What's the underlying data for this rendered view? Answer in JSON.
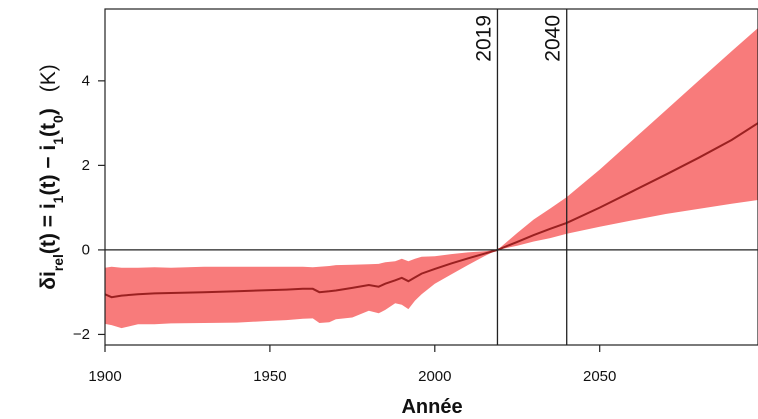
{
  "chart_data": {
    "type": "line",
    "xlabel": "Année",
    "ylabel": {
      "parts": [
        {
          "t": "δi",
          "sub": false
        },
        {
          "t": "rel",
          "sub": true
        },
        {
          "t": "(t) = i",
          "sub": false
        },
        {
          "t": "1",
          "sub": true
        },
        {
          "t": "(t) − i",
          "sub": false
        },
        {
          "t": "1",
          "sub": true
        },
        {
          "t": "(t",
          "sub": false
        },
        {
          "t": "0",
          "sub": true
        },
        {
          "t": ")",
          "sub": false
        }
      ],
      "unit": "(K)"
    },
    "xlim": [
      1900,
      2098
    ],
    "ylim": [
      -2.25,
      5.7
    ],
    "x_ticks": [
      1900,
      1950,
      2000,
      2050
    ],
    "y_ticks": [
      -2,
      0,
      2,
      4
    ],
    "hline": 0,
    "vlines": [
      {
        "x": 2019,
        "label": "2019"
      },
      {
        "x": 2040,
        "label": "2040"
      }
    ],
    "colors": {
      "band": "#f87b7b",
      "line": "#9b2121",
      "axis": "#222222"
    },
    "series": [
      {
        "x": [
          1900,
          1902,
          1905,
          1910,
          1915,
          1920,
          1930,
          1940,
          1950,
          1955,
          1960,
          1963,
          1965,
          1968,
          1970,
          1975,
          1980,
          1983,
          1985,
          1988,
          1990,
          1992,
          1994,
          1996,
          2000,
          2005,
          2010,
          2015,
          2019,
          2025,
          2030,
          2035,
          2040,
          2050,
          2060,
          2070,
          2080,
          2090,
          2098
        ],
        "mean": [
          -1.05,
          -1.12,
          -1.08,
          -1.05,
          -1.03,
          -1.02,
          -1.0,
          -0.98,
          -0.95,
          -0.94,
          -0.92,
          -0.92,
          -1.0,
          -0.98,
          -0.96,
          -0.9,
          -0.83,
          -0.87,
          -0.8,
          -0.72,
          -0.66,
          -0.74,
          -0.65,
          -0.56,
          -0.45,
          -0.32,
          -0.2,
          -0.09,
          0.0,
          0.19,
          0.35,
          0.5,
          0.64,
          1.0,
          1.39,
          1.78,
          2.18,
          2.6,
          3.0
        ],
        "upper": [
          -0.42,
          -0.4,
          -0.42,
          -0.42,
          -0.41,
          -0.42,
          -0.4,
          -0.4,
          -0.4,
          -0.4,
          -0.4,
          -0.41,
          -0.4,
          -0.38,
          -0.36,
          -0.35,
          -0.34,
          -0.33,
          -0.29,
          -0.27,
          -0.21,
          -0.27,
          -0.21,
          -0.16,
          -0.15,
          -0.1,
          -0.06,
          -0.03,
          0.0,
          0.4,
          0.72,
          0.98,
          1.25,
          1.9,
          2.6,
          3.3,
          4.0,
          4.7,
          5.25
        ],
        "lower": [
          -1.75,
          -1.78,
          -1.85,
          -1.76,
          -1.76,
          -1.74,
          -1.73,
          -1.72,
          -1.68,
          -1.66,
          -1.63,
          -1.62,
          -1.73,
          -1.71,
          -1.64,
          -1.6,
          -1.44,
          -1.5,
          -1.42,
          -1.26,
          -1.3,
          -1.4,
          -1.2,
          -1.05,
          -0.8,
          -0.58,
          -0.36,
          -0.15,
          0.0,
          0.1,
          0.2,
          0.28,
          0.38,
          0.55,
          0.7,
          0.85,
          0.97,
          1.09,
          1.18
        ]
      }
    ]
  }
}
